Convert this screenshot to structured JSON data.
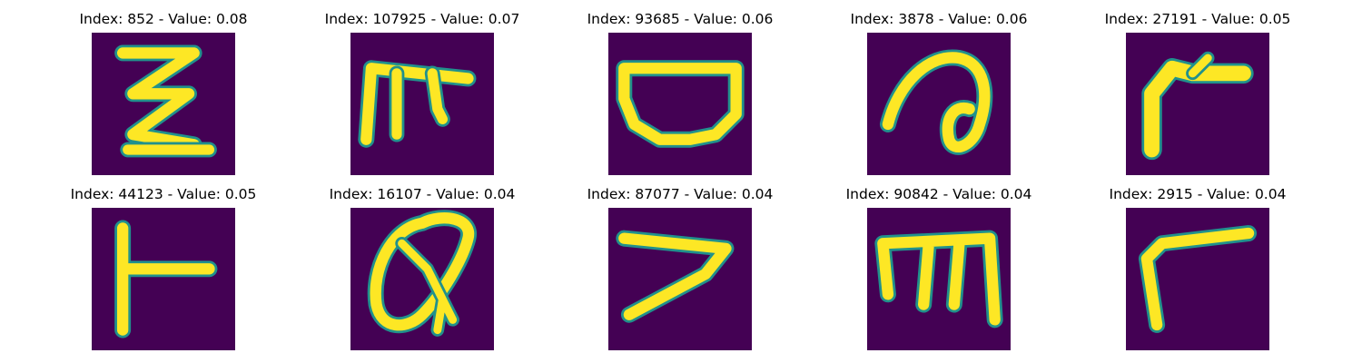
{
  "panels": [
    {
      "title": "Index: 852 - Value: 0.08",
      "glyph": "glyph-zigzag-icon"
    },
    {
      "title": "Index: 107925 - Value: 0.07",
      "glyph": "glyph-bracket-hook-icon"
    },
    {
      "title": "Index: 93685 - Value: 0.06",
      "glyph": "glyph-bowl-icon"
    },
    {
      "title": "Index: 3878 - Value: 0.06",
      "glyph": "glyph-loop-curl-icon"
    },
    {
      "title": "Index: 27191 - Value: 0.05",
      "glyph": "glyph-corner-hook-icon"
    },
    {
      "title": "Index: 44123 - Value: 0.05",
      "glyph": "glyph-tee-icon"
    },
    {
      "title": "Index: 16107 - Value: 0.04",
      "glyph": "glyph-oval-tail-icon"
    },
    {
      "title": "Index: 87077 - Value: 0.04",
      "glyph": "glyph-angle-icon"
    },
    {
      "title": "Index: 90842 - Value: 0.04",
      "glyph": "glyph-three-prong-icon"
    },
    {
      "title": "Index: 2915 - Value: 0.04",
      "glyph": "glyph-corner-icon"
    }
  ],
  "colors": {
    "background": "#440154",
    "stroke_core": "#fde725",
    "stroke_edge": "#21918c"
  }
}
